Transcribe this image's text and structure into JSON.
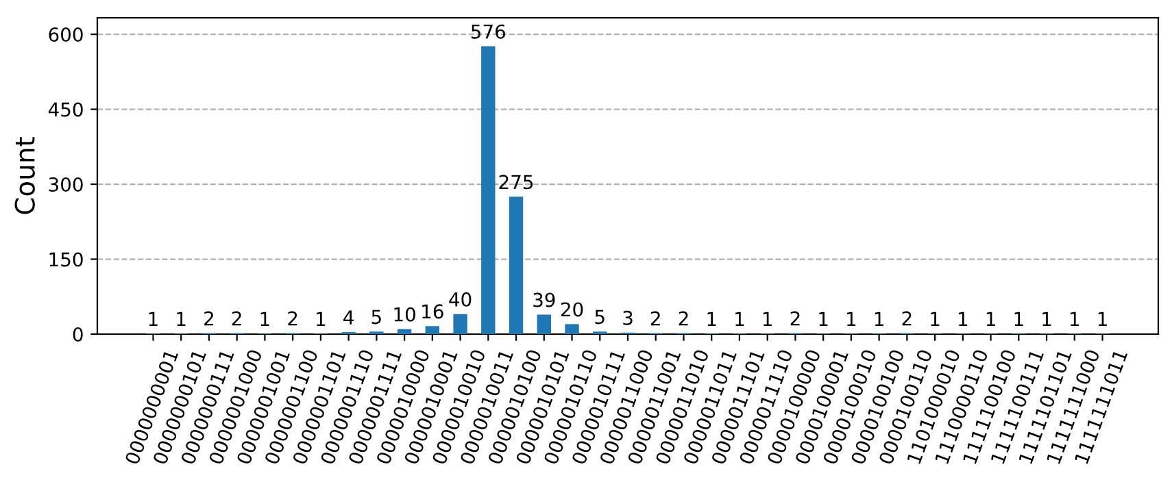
{
  "chart_data": {
    "type": "bar",
    "ylabel": "Count",
    "categories": [
      "0000000001",
      "0000000101",
      "0000000111",
      "0000001000",
      "0000001001",
      "0000001100",
      "0000001101",
      "0000001110",
      "0000001111",
      "0000010000",
      "0000010001",
      "0000010010",
      "0000010011",
      "0000010100",
      "0000010101",
      "0000010110",
      "0000010111",
      "0000011000",
      "0000011001",
      "0000011010",
      "0000011011",
      "0000011101",
      "0000011110",
      "0000100000",
      "0000100001",
      "0000100010",
      "0000100100",
      "0000100110",
      "1101000010",
      "1110000110",
      "1111100100",
      "1111100111",
      "1111101101",
      "1111111000",
      "1111111011"
    ],
    "values": [
      1,
      1,
      2,
      2,
      1,
      2,
      1,
      4,
      5,
      10,
      16,
      40,
      576,
      275,
      39,
      20,
      5,
      3,
      2,
      2,
      1,
      1,
      1,
      2,
      1,
      1,
      1,
      2,
      1,
      1,
      1,
      1,
      1,
      1,
      1
    ],
    "color": "#1f77b4",
    "ylim": [
      0,
      633
    ],
    "yticks": [
      0,
      150,
      300,
      450,
      600
    ],
    "grid": "y",
    "data_labels": true
  }
}
